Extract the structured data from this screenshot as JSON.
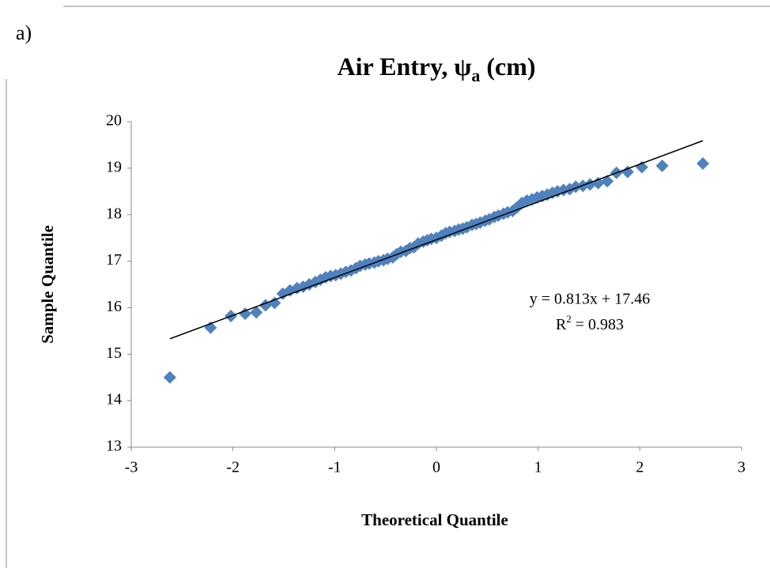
{
  "panel_label": "a)",
  "chart_data": {
    "type": "scatter",
    "title": [
      "Air Entry, ψ",
      "a",
      " (cm)"
    ],
    "x_label": "Theoretical Quantile",
    "y_label": "Sample Quantile",
    "color": "#4f81bd",
    "xlim": [
      -3,
      3
    ],
    "xticks": [
      -3,
      -2,
      -1,
      0,
      1,
      2,
      3
    ],
    "ylim": [
      13,
      20
    ],
    "yticks": [
      13,
      14,
      15,
      16,
      17,
      18,
      19,
      20
    ],
    "x": [
      -2.62,
      -2.22,
      -2.02,
      -1.88,
      -1.77,
      -1.68,
      -1.59,
      -1.51,
      -1.44,
      -1.37,
      -1.31,
      -1.25,
      -1.19,
      -1.14,
      -1.09,
      -1.04,
      -0.99,
      -0.94,
      -0.89,
      -0.84,
      -0.79,
      -0.75,
      -0.7,
      -0.66,
      -0.61,
      -0.57,
      -0.52,
      -0.48,
      -0.43,
      -0.39,
      -0.35,
      -0.3,
      -0.26,
      -0.22,
      -0.18,
      -0.13,
      -0.09,
      -0.05,
      0,
      0.05,
      0.09,
      0.13,
      0.18,
      0.22,
      0.26,
      0.3,
      0.35,
      0.39,
      0.43,
      0.48,
      0.52,
      0.57,
      0.61,
      0.66,
      0.7,
      0.75,
      0.79,
      0.84,
      0.89,
      0.94,
      0.99,
      1.04,
      1.09,
      1.14,
      1.19,
      1.25,
      1.31,
      1.37,
      1.44,
      1.51,
      1.59,
      1.68,
      1.77,
      1.88,
      2.02,
      2.22,
      2.62
    ],
    "values": [
      14.5,
      15.57,
      15.82,
      15.87,
      15.9,
      16.05,
      16.1,
      16.3,
      16.37,
      16.42,
      16.45,
      16.5,
      16.55,
      16.6,
      16.65,
      16.68,
      16.7,
      16.73,
      16.77,
      16.8,
      16.85,
      16.9,
      16.93,
      16.95,
      16.97,
      17.0,
      17.02,
      17.05,
      17.08,
      17.15,
      17.2,
      17.22,
      17.28,
      17.3,
      17.38,
      17.42,
      17.45,
      17.48,
      17.5,
      17.55,
      17.6,
      17.63,
      17.65,
      17.68,
      17.7,
      17.73,
      17.78,
      17.8,
      17.83,
      17.87,
      17.9,
      17.95,
      17.98,
      18.02,
      18.05,
      18.08,
      18.15,
      18.25,
      18.3,
      18.33,
      18.37,
      18.4,
      18.43,
      18.47,
      18.5,
      18.53,
      18.55,
      18.6,
      18.62,
      18.65,
      18.68,
      18.72,
      18.9,
      18.92,
      19.02,
      19.05,
      19.1
    ],
    "trendline": {
      "slope": 0.813,
      "intercept": 17.46,
      "xlim": [
        -2.62,
        2.62
      ],
      "color": "#000000"
    },
    "annotation": [
      "y = 0.813x + 17.46",
      "R",
      "2",
      " = 0.983"
    ]
  }
}
